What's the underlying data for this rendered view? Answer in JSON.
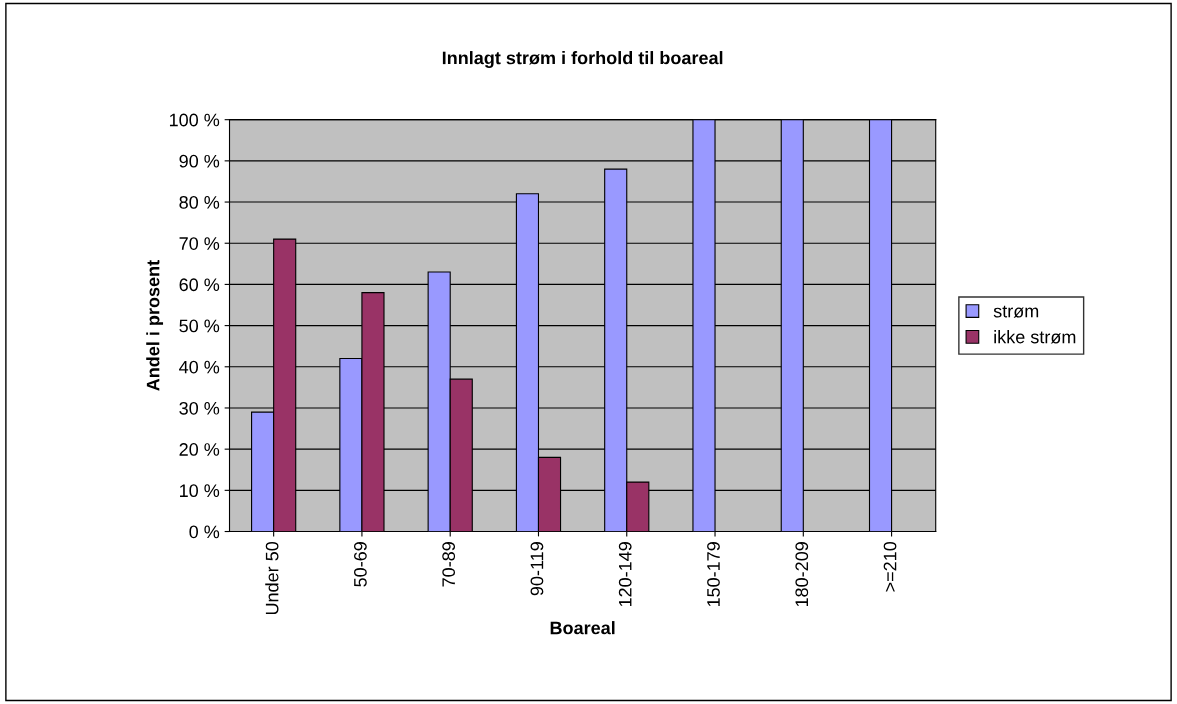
{
  "chart_data": {
    "type": "bar",
    "title": "Innlagt strøm i forhold til boareal",
    "xlabel": "Boareal",
    "ylabel": "Andel i prosent",
    "categories": [
      "Under 50",
      "50-69",
      "70-89",
      "90-119",
      "120-149",
      "150-179",
      "180-209",
      ">=210"
    ],
    "series": [
      {
        "name": "strøm",
        "color": "#9999ff",
        "values": [
          29,
          42,
          63,
          82,
          88,
          100,
          100,
          100
        ]
      },
      {
        "name": "ikke strøm",
        "color": "#993366",
        "values": [
          71,
          58,
          37,
          18,
          12,
          null,
          null,
          null
        ]
      }
    ],
    "ylim": [
      0,
      100
    ],
    "yticks": [
      {
        "value": 0,
        "label": "0 %"
      },
      {
        "value": 10,
        "label": "10 %"
      },
      {
        "value": 20,
        "label": "20 %"
      },
      {
        "value": 30,
        "label": "30 %"
      },
      {
        "value": 40,
        "label": "40 %"
      },
      {
        "value": 50,
        "label": "50 %"
      },
      {
        "value": 60,
        "label": "60 %"
      },
      {
        "value": 70,
        "label": "70 %"
      },
      {
        "value": 80,
        "label": "80 %"
      },
      {
        "value": 90,
        "label": "90 %"
      },
      {
        "value": 100,
        "label": "100 %"
      }
    ],
    "grid": "y",
    "legend": "right"
  }
}
